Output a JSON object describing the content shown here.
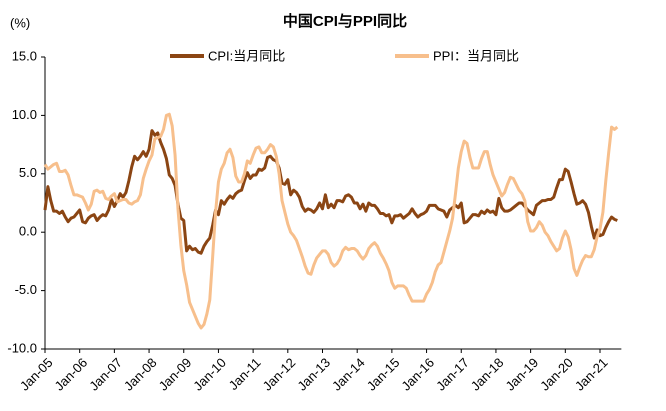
{
  "chart_data": {
    "type": "line",
    "title": "中国CPI与PPI同比",
    "y_label": "(%)",
    "categories": [
      "Jan-05",
      null,
      null,
      null,
      null,
      null,
      null,
      null,
      null,
      null,
      null,
      null,
      "Jan-06",
      null,
      null,
      null,
      null,
      null,
      null,
      null,
      null,
      null,
      null,
      null,
      "Jan-07",
      null,
      null,
      null,
      null,
      null,
      null,
      null,
      null,
      null,
      null,
      null,
      "Jan-08",
      null,
      null,
      null,
      null,
      null,
      null,
      null,
      null,
      null,
      null,
      null,
      "Jan-09",
      null,
      null,
      null,
      null,
      null,
      null,
      null,
      null,
      null,
      null,
      null,
      "Jan-10",
      null,
      null,
      null,
      null,
      null,
      null,
      null,
      null,
      null,
      null,
      null,
      "Jan-11",
      null,
      null,
      null,
      null,
      null,
      null,
      null,
      null,
      null,
      null,
      null,
      "Jan-12",
      null,
      null,
      null,
      null,
      null,
      null,
      null,
      null,
      null,
      null,
      null,
      "Jan-13",
      null,
      null,
      null,
      null,
      null,
      null,
      null,
      null,
      null,
      null,
      null,
      "Jan-14",
      null,
      null,
      null,
      null,
      null,
      null,
      null,
      null,
      null,
      null,
      null,
      "Jan-15",
      null,
      null,
      null,
      null,
      null,
      null,
      null,
      null,
      null,
      null,
      null,
      "Jan-16",
      null,
      null,
      null,
      null,
      null,
      null,
      null,
      null,
      null,
      null,
      null,
      "Jan-17",
      null,
      null,
      null,
      null,
      null,
      null,
      null,
      null,
      null,
      null,
      null,
      "Jan-18",
      null,
      null,
      null,
      null,
      null,
      null,
      null,
      null,
      null,
      null,
      null,
      "Jan-19",
      null,
      null,
      null,
      null,
      null,
      null,
      null,
      null,
      null,
      null,
      null,
      "Jan-20",
      null,
      null,
      null,
      null,
      null,
      null,
      null,
      null,
      null,
      null,
      null,
      "Jan-21",
      null,
      null,
      null,
      null,
      null,
      null
    ],
    "series": [
      {
        "name": "CPI:当月同比",
        "color": "#8b4513",
        "values": [
          1.9,
          3.9,
          2.7,
          1.8,
          1.8,
          1.6,
          1.8,
          1.3,
          0.9,
          1.2,
          1.3,
          1.6,
          1.9,
          0.9,
          0.8,
          1.2,
          1.4,
          1.5,
          1.0,
          1.3,
          1.5,
          1.4,
          1.9,
          2.8,
          2.2,
          2.7,
          3.3,
          3.0,
          3.4,
          4.4,
          5.6,
          6.5,
          6.2,
          6.5,
          6.9,
          6.5,
          7.1,
          8.7,
          8.3,
          8.5,
          7.7,
          7.1,
          6.3,
          4.9,
          4.6,
          4.0,
          2.4,
          1.2,
          1.0,
          -1.6,
          -1.2,
          -1.5,
          -1.4,
          -1.7,
          -1.8,
          -1.2,
          -0.8,
          -0.5,
          0.6,
          1.9,
          1.5,
          2.7,
          2.4,
          2.8,
          3.1,
          2.9,
          3.3,
          3.5,
          3.6,
          4.4,
          5.1,
          4.6,
          4.9,
          4.9,
          5.4,
          5.3,
          5.5,
          6.4,
          6.5,
          6.2,
          6.1,
          5.5,
          4.2,
          4.1,
          4.5,
          3.2,
          3.6,
          3.4,
          3.0,
          2.2,
          1.8,
          2.0,
          1.9,
          1.7,
          2.0,
          2.5,
          2.0,
          3.2,
          2.1,
          2.4,
          2.1,
          2.7,
          2.7,
          2.6,
          3.1,
          3.2,
          3.0,
          2.5,
          2.5,
          2.0,
          2.4,
          1.8,
          2.5,
          2.3,
          2.3,
          2.0,
          1.6,
          1.6,
          1.4,
          1.5,
          0.8,
          1.4,
          1.4,
          1.5,
          1.2,
          1.4,
          1.6,
          2.0,
          1.6,
          1.3,
          1.5,
          1.6,
          1.8,
          2.3,
          2.3,
          2.3,
          2.0,
          1.9,
          1.8,
          1.3,
          1.9,
          2.1,
          2.3,
          2.1,
          2.5,
          0.8,
          0.9,
          1.2,
          1.5,
          1.5,
          1.4,
          1.8,
          1.6,
          1.9,
          1.7,
          1.8,
          1.5,
          2.9,
          2.1,
          1.8,
          1.8,
          1.9,
          2.1,
          2.3,
          2.5,
          2.5,
          2.2,
          1.9,
          1.7,
          1.5,
          2.3,
          2.5,
          2.7,
          2.7,
          2.8,
          2.8,
          3.0,
          3.8,
          4.5,
          4.5,
          5.4,
          5.2,
          4.3,
          3.3,
          2.4,
          2.5,
          2.7,
          2.4,
          1.7,
          0.5,
          -0.5,
          0.2,
          -0.3,
          -0.2,
          0.4,
          0.9,
          1.3,
          1.1,
          1.0
        ]
      },
      {
        "name": "PPI：当月同比",
        "color": "#f7bf8c",
        "values": [
          5.8,
          5.4,
          5.6,
          5.8,
          5.9,
          5.2,
          5.2,
          5.3,
          4.9,
          4.0,
          3.2,
          3.2,
          3.1,
          3.0,
          2.5,
          1.9,
          2.4,
          3.5,
          3.6,
          3.4,
          3.5,
          2.9,
          2.8,
          3.1,
          3.3,
          2.6,
          2.7,
          2.8,
          2.8,
          2.5,
          2.4,
          2.6,
          2.7,
          3.2,
          4.6,
          5.4,
          6.1,
          6.6,
          8.0,
          8.1,
          8.2,
          8.8,
          10.0,
          10.1,
          9.1,
          6.6,
          2.0,
          -1.1,
          -3.3,
          -4.5,
          -6.0,
          -6.6,
          -7.2,
          -7.8,
          -8.2,
          -7.9,
          -7.0,
          -5.8,
          -2.1,
          1.7,
          4.3,
          5.4,
          5.9,
          6.8,
          7.1,
          6.4,
          4.8,
          4.3,
          4.3,
          5.0,
          6.1,
          5.9,
          6.6,
          7.2,
          7.3,
          6.8,
          6.8,
          7.1,
          7.5,
          7.3,
          6.5,
          5.0,
          2.7,
          1.7,
          0.7,
          0.0,
          -0.3,
          -0.7,
          -1.4,
          -2.1,
          -2.9,
          -3.5,
          -3.6,
          -2.8,
          -2.2,
          -1.9,
          -1.6,
          -1.6,
          -1.9,
          -2.6,
          -2.9,
          -2.7,
          -2.3,
          -1.6,
          -1.3,
          -1.5,
          -1.4,
          -1.4,
          -1.6,
          -2.0,
          -2.3,
          -2.0,
          -1.4,
          -1.1,
          -0.9,
          -1.2,
          -1.8,
          -2.2,
          -2.7,
          -3.3,
          -4.3,
          -4.8,
          -4.6,
          -4.6,
          -4.6,
          -4.8,
          -5.4,
          -5.9,
          -5.9,
          -5.9,
          -5.9,
          -5.9,
          -5.3,
          -4.9,
          -4.3,
          -3.4,
          -2.8,
          -2.6,
          -1.7,
          -0.8,
          0.1,
          1.2,
          3.3,
          5.5,
          6.9,
          7.8,
          7.6,
          6.4,
          5.5,
          5.5,
          5.5,
          6.3,
          6.9,
          6.9,
          5.8,
          4.9,
          4.3,
          3.7,
          3.1,
          3.4,
          4.1,
          4.7,
          4.6,
          4.1,
          3.6,
          3.3,
          2.7,
          0.9,
          0.1,
          0.1,
          0.4,
          0.9,
          0.6,
          0.0,
          -0.3,
          -0.8,
          -1.2,
          -1.6,
          -1.4,
          -0.5,
          0.1,
          -0.4,
          -1.5,
          -3.1,
          -3.7,
          -3.0,
          -2.4,
          -2.0,
          -2.1,
          -2.1,
          -1.5,
          -0.4,
          0.3,
          1.7,
          4.4,
          6.8,
          9.0,
          8.8,
          9.0
        ]
      }
    ],
    "ylim": [
      -10,
      15
    ],
    "yticks": [
      {
        "value": -10,
        "label": "-10.0"
      },
      {
        "value": -5,
        "label": "-5.0"
      },
      {
        "value": 0,
        "label": "0.0"
      },
      {
        "value": 5,
        "label": "5.0"
      },
      {
        "value": 10,
        "label": "10.0"
      },
      {
        "value": 15,
        "label": "15.0"
      }
    ],
    "grid": false,
    "legend": "top"
  }
}
